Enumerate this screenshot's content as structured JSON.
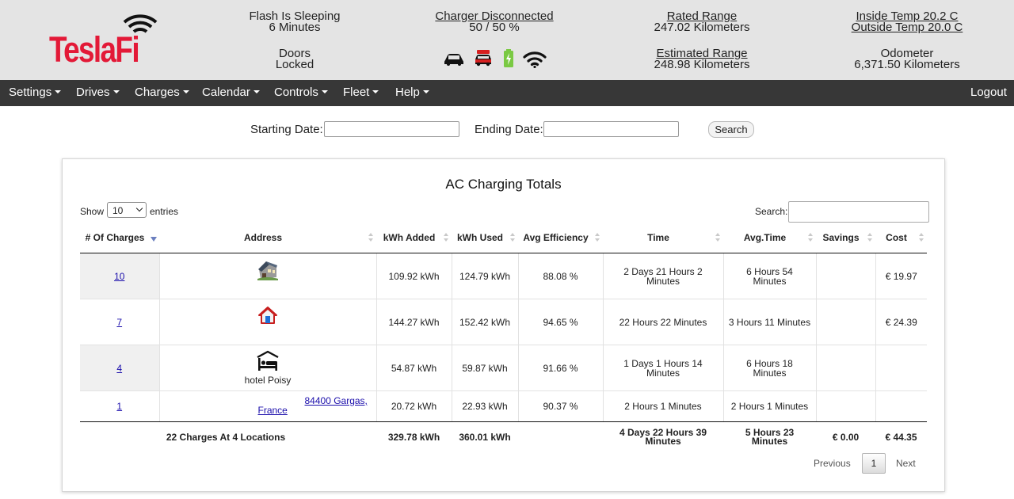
{
  "brand": {
    "logo_text": "TeslaFi",
    "accent": "#e31937"
  },
  "status": {
    "sleep_title": "Flash Is Sleeping",
    "sleep_duration": "6 Minutes",
    "doors_title": "Doors",
    "doors_value": "Locked",
    "charger_title": "Charger Disconnected",
    "charger_value": "50 / 50 %",
    "rated_title": "Rated Range",
    "rated_value": "247.02 Kilometers",
    "est_title": "Estimated Range",
    "est_value": "248.98 Kilometers",
    "inside_temp": "Inside Temp 20.2 C",
    "outside_temp": "Outside Temp 20.0 C",
    "odometer_title": "Odometer",
    "odometer_value": "6,371.50 Kilometers",
    "icons": [
      "car-icon",
      "car-alert-icon",
      "battery-icon",
      "wifi-icon"
    ]
  },
  "nav": {
    "items": [
      "Settings",
      "Drives",
      "Charges",
      "Calendar",
      "Controls",
      "Fleet",
      "Help"
    ],
    "logout": "Logout"
  },
  "filter": {
    "start_label": "Starting Date:",
    "start_value": "",
    "end_label": "Ending Date:",
    "end_value": "",
    "search_button": "Search"
  },
  "panel": {
    "title": "AC Charging Totals",
    "show_prefix": "Show",
    "show_value": "10",
    "show_suffix": "entries",
    "search_label": "Search:",
    "search_value": ""
  },
  "table": {
    "columns": [
      "# Of Charges",
      "Address",
      "kWh Added",
      "kWh Used",
      "Avg Efficiency",
      "Time",
      "Avg.Time",
      "Savings",
      "Cost"
    ],
    "rows": [
      {
        "charges": "10",
        "address_icon": "house-photo-icon",
        "address_text": "",
        "kwh_added": "109.92 kWh",
        "kwh_used": "124.79 kWh",
        "efficiency": "88.08 %",
        "time": "2 Days 21 Hours 2 Minutes",
        "avg_time": "6 Hours 54 Minutes",
        "savings": "",
        "cost": "€ 19.97"
      },
      {
        "charges": "7",
        "address_icon": "home-icon",
        "address_text": "",
        "kwh_added": "144.27 kWh",
        "kwh_used": "152.42 kWh",
        "efficiency": "94.65 %",
        "time": "22 Hours 22 Minutes",
        "avg_time": "3 Hours 11 Minutes",
        "savings": "",
        "cost": "€ 24.39"
      },
      {
        "charges": "4",
        "address_icon": "hotel-icon",
        "address_text": "hotel Poisy",
        "kwh_added": "54.87 kWh",
        "kwh_used": "59.87 kWh",
        "efficiency": "91.66 %",
        "time": "1 Days 1 Hours 14 Minutes",
        "avg_time": "6 Hours 18 Minutes",
        "savings": "",
        "cost": ""
      },
      {
        "charges": "1",
        "address_icon": "",
        "address_text": "84400 Gargas, France",
        "address_line1": "84400 Gargas,",
        "address_line2": "France",
        "kwh_added": "20.72 kWh",
        "kwh_used": "22.93 kWh",
        "efficiency": "90.37 %",
        "time": "2 Hours 1 Minutes",
        "avg_time": "2 Hours 1 Minutes",
        "savings": "",
        "cost": ""
      }
    ],
    "totals": {
      "label": "22 Charges At 4 Locations",
      "kwh_added": "329.78 kWh",
      "kwh_used": "360.01 kWh",
      "efficiency": "",
      "time": "4 Days 22 Hours 39 Minutes",
      "avg_time": "5 Hours 23 Minutes",
      "savings": "€ 0.00",
      "cost": "€ 44.35"
    }
  },
  "pagination": {
    "previous": "Previous",
    "current": "1",
    "next": "Next"
  }
}
